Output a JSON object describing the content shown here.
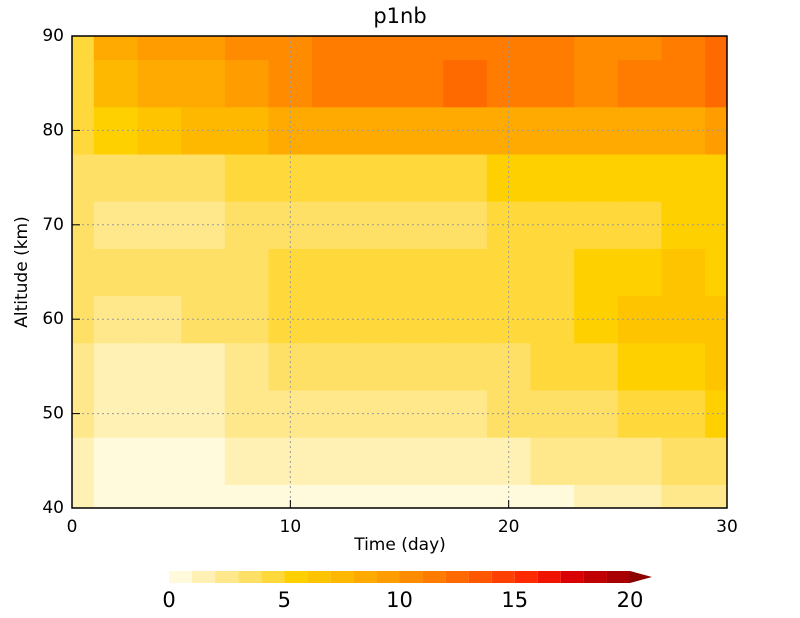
{
  "chart_data": {
    "type": "heatmap",
    "title": "p1nb",
    "x_label": "Time (day)",
    "y_label": "Altitude (km)",
    "x": [
      0,
      2,
      4,
      6,
      8,
      10,
      12,
      14,
      16,
      18,
      20,
      22,
      24,
      26,
      28,
      30
    ],
    "y": [
      40,
      45,
      50,
      55,
      60,
      65,
      70,
      75,
      80,
      85,
      90
    ],
    "values": [
      [
        1.2,
        0.6,
        0.5,
        0.5,
        0.7,
        0.7,
        0.7,
        0.8,
        0.8,
        0.8,
        0.9,
        0.9,
        1.0,
        1.5,
        2.0,
        2.5
      ],
      [
        1.5,
        0.8,
        0.7,
        0.7,
        1.2,
        1.3,
        1.4,
        1.5,
        1.6,
        1.7,
        1.8,
        2.0,
        2.3,
        2.8,
        3.2,
        3.5
      ],
      [
        2.0,
        1.2,
        1.0,
        1.1,
        2.0,
        2.1,
        2.2,
        2.4,
        2.5,
        2.7,
        3.0,
        3.3,
        3.8,
        4.3,
        4.8,
        5.0
      ],
      [
        2.5,
        1.8,
        1.5,
        1.6,
        2.8,
        3.0,
        3.1,
        3.3,
        3.5,
        3.6,
        3.9,
        4.2,
        4.8,
        5.5,
        5.8,
        6.0
      ],
      [
        3.0,
        2.5,
        2.5,
        3.0,
        3.6,
        4.0,
        4.0,
        4.1,
        4.2,
        4.3,
        4.5,
        4.8,
        5.3,
        6.0,
        6.5,
        6.3
      ],
      [
        3.2,
        3.0,
        3.3,
        3.8,
        3.8,
        4.5,
        4.3,
        4.2,
        4.5,
        4.4,
        4.8,
        4.7,
        5.0,
        5.5,
        6.0,
        5.8
      ],
      [
        3.5,
        2.5,
        2.5,
        2.8,
        3.0,
        3.5,
        3.4,
        3.3,
        3.6,
        3.8,
        4.2,
        4.0,
        4.3,
        4.5,
        5.0,
        5.2
      ],
      [
        3.8,
        3.3,
        3.6,
        3.8,
        4.0,
        4.2,
        4.3,
        4.5,
        4.8,
        4.9,
        5.0,
        5.0,
        5.2,
        5.4,
        5.6,
        5.8
      ],
      [
        4.5,
        5.5,
        6.5,
        7.0,
        7.5,
        8.0,
        8.5,
        8.2,
        8.8,
        8.5,
        8.5,
        8.0,
        8.3,
        8.5,
        8.8,
        9.5
      ],
      [
        4.5,
        7.5,
        8.5,
        8.8,
        9.5,
        10.5,
        11.5,
        11.2,
        11.0,
        12.0,
        11.5,
        11.0,
        10.5,
        11.0,
        11.5,
        12.5
      ],
      [
        4.0,
        8.0,
        9.0,
        9.5,
        10.0,
        10.5,
        11.5,
        11.0,
        11.0,
        11.5,
        11.0,
        11.5,
        10.0,
        10.5,
        11.0,
        12.0
      ]
    ],
    "xlim": [
      0,
      30
    ],
    "xticks": [
      0,
      10,
      20,
      30
    ],
    "ylim": [
      40,
      90
    ],
    "yticks": [
      40,
      50,
      60,
      70,
      80,
      90
    ],
    "grid": true,
    "levels": [
      0,
      1,
      2,
      3,
      4,
      5,
      6,
      7,
      8,
      9,
      10,
      11,
      12,
      13,
      14,
      15,
      16,
      17,
      18,
      19,
      20
    ],
    "colors": [
      "#fffadc",
      "#fff0b4",
      "#ffe88c",
      "#ffe066",
      "#ffd83c",
      "#ffd000",
      "#ffc400",
      "#ffb800",
      "#ffaa00",
      "#ff9c00",
      "#ff8c00",
      "#ff7c00",
      "#ff6a00",
      "#ff5600",
      "#ff4000",
      "#ff2a00",
      "#f01400",
      "#d80000",
      "#c00000",
      "#a80000",
      "#8c0000"
    ],
    "colorbar_ticks": [
      0,
      5,
      10,
      15,
      20
    ]
  }
}
